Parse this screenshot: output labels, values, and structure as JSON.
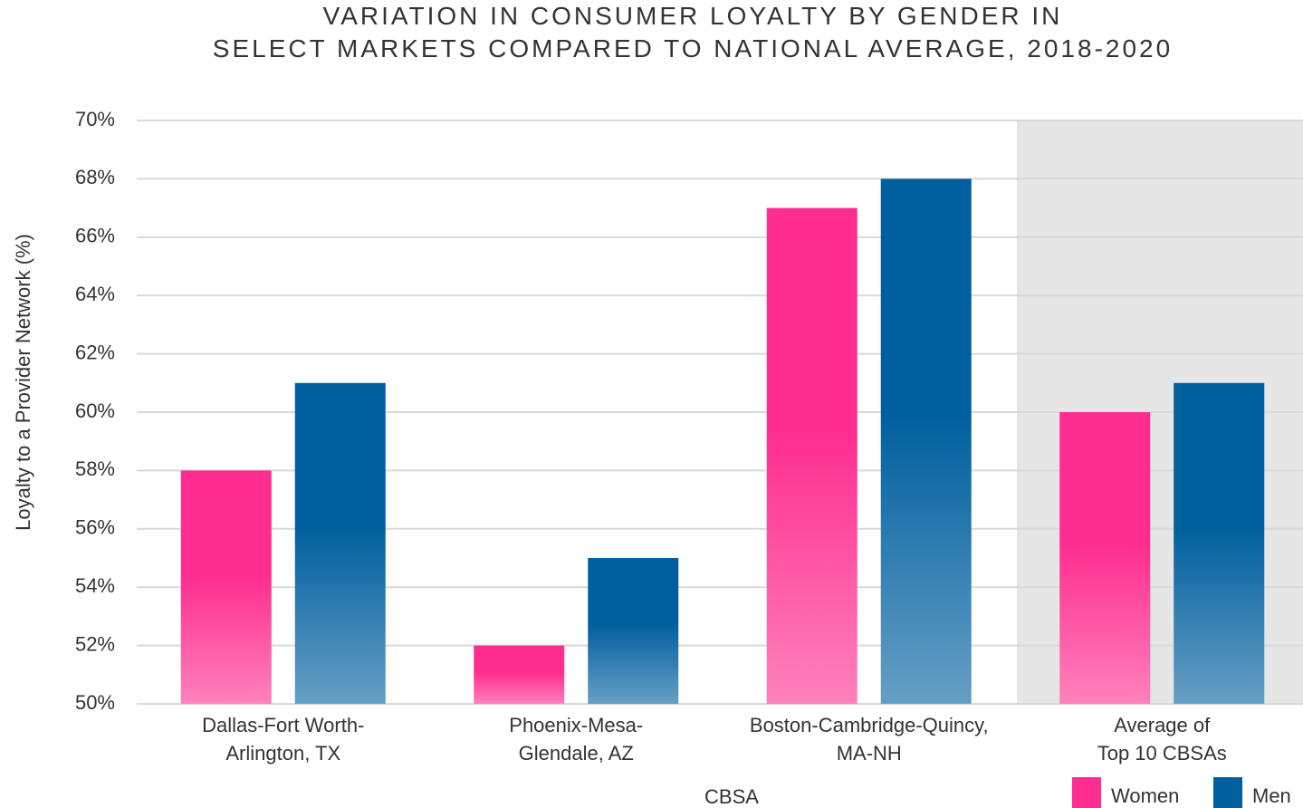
{
  "chart_data": {
    "type": "bar",
    "title": "VARIATION IN CONSUMER LOYALTY BY GENDER IN\nSELECT MARKETS COMPARED TO NATIONAL AVERAGE, 2018-2020",
    "x_label": "CBSA",
    "y_label": "Loyalty to a Provider Network (%)",
    "categories": [
      "Dallas-Fort Worth-\nArlington, TX",
      "Phoenix-Mesa-\nGlendale, AZ",
      "Boston-Cambridge-Quincy,\nMA-NH",
      "Average of\nTop 10 CBSAs"
    ],
    "series": [
      {
        "name": "Women",
        "color": "#ff2d8f",
        "values": [
          58,
          52,
          67,
          60
        ]
      },
      {
        "name": "Men",
        "color": "#005f9e",
        "values": [
          61,
          55,
          68,
          61
        ]
      }
    ],
    "ylim": [
      50,
      70
    ],
    "yticks": [
      {
        "value": 50,
        "label": "50%"
      },
      {
        "value": 52,
        "label": "52%"
      },
      {
        "value": 54,
        "label": "54%"
      },
      {
        "value": 56,
        "label": "56%"
      },
      {
        "value": 58,
        "label": "58%"
      },
      {
        "value": 60,
        "label": "60%"
      },
      {
        "value": 62,
        "label": "62%"
      },
      {
        "value": 64,
        "label": "64%"
      },
      {
        "value": 66,
        "label": "66%"
      },
      {
        "value": 68,
        "label": "68%"
      },
      {
        "value": 70,
        "label": "70%"
      }
    ],
    "grid": true,
    "legend": "bottom-right"
  }
}
